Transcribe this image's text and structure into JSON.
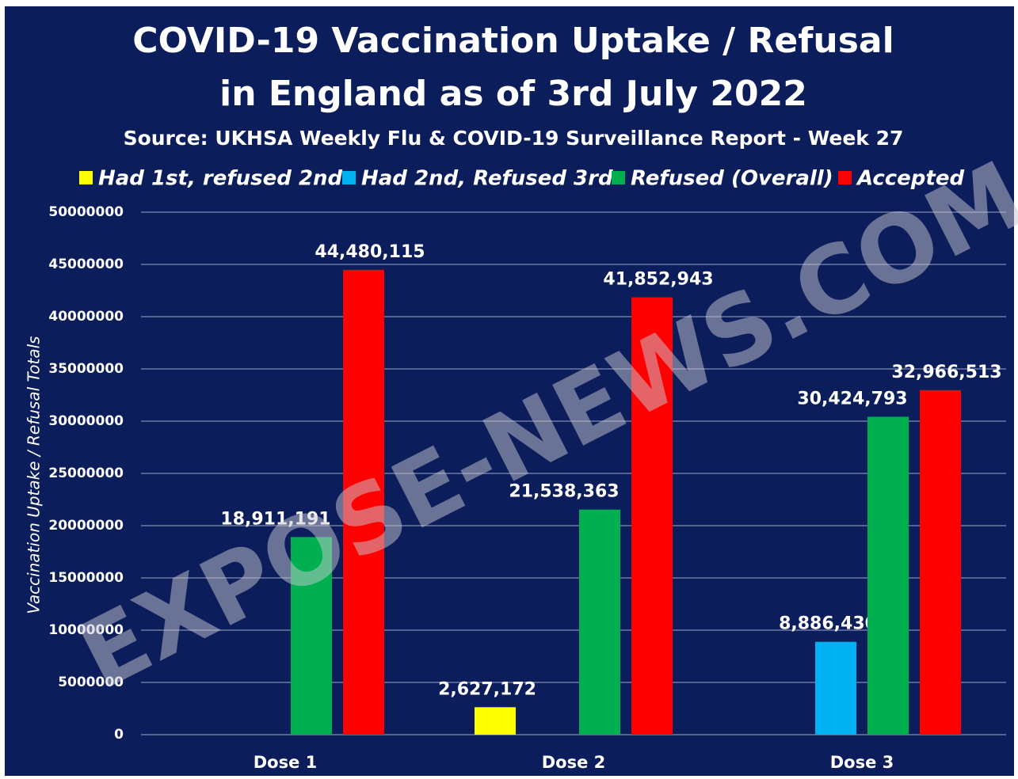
{
  "chart_data": {
    "type": "bar",
    "title": [
      "COVID-19 Vaccination Uptake / Refusal",
      "in England as of 3rd July 2022"
    ],
    "subtitle": "Source: UKHSA Weekly Flu & COVID-19 Surveillance Report - Week 27",
    "y_label": "Vaccination Uptake / Refusal Totals",
    "watermark": "EXPOSE-NEWS.COM",
    "categories": [
      "Dose 1",
      "Dose 2",
      "Dose 3"
    ],
    "series": [
      {
        "name": "Had 1st, refused 2nd",
        "color": "#ffff00",
        "values": [
          null,
          2627172,
          null
        ],
        "value_labels": [
          null,
          "2,627,172",
          null
        ]
      },
      {
        "name": "Had 2nd, Refused 3rd",
        "color": "#00b0f0",
        "values": [
          null,
          null,
          8886430
        ],
        "value_labels": [
          null,
          null,
          "8,886,430"
        ]
      },
      {
        "name": "Refused (Overall)",
        "color": "#00b050",
        "values": [
          18911191,
          21538363,
          30424793
        ],
        "value_labels": [
          "18,911,191",
          "21,538,363",
          "30,424,793"
        ]
      },
      {
        "name": "Accepted",
        "color": "#ff0000",
        "values": [
          44480115,
          41852943,
          32966513
        ],
        "value_labels": [
          "44,480,115",
          "41,852,943",
          "32,966,513"
        ]
      }
    ],
    "ylim": [
      0,
      50000000
    ],
    "yticks": [
      0,
      5000000,
      10000000,
      15000000,
      20000000,
      25000000,
      30000000,
      35000000,
      40000000,
      45000000,
      50000000
    ],
    "grid": true,
    "legend": "top"
  }
}
